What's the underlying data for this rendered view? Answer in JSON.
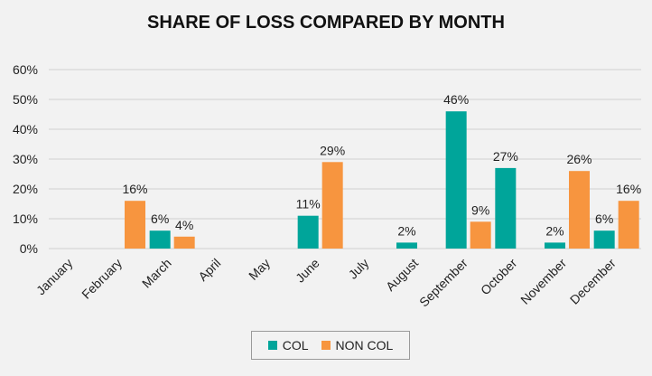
{
  "chart_data": {
    "type": "bar",
    "title": "SHARE OF LOSS COMPARED BY MONTH",
    "categories": [
      "January",
      "February",
      "March",
      "April",
      "May",
      "June",
      "July",
      "August",
      "September",
      "October",
      "November",
      "December"
    ],
    "series": [
      {
        "name": "COL",
        "color": "#00a59a",
        "values": [
          null,
          null,
          0.06,
          null,
          null,
          0.11,
          null,
          0.02,
          0.46,
          0.27,
          0.02,
          0.06
        ],
        "labels": [
          "",
          "",
          "6%",
          "",
          "",
          "11%",
          "",
          "2%",
          "46%",
          "27%",
          "2%",
          "6%"
        ]
      },
      {
        "name": "NON COL",
        "color": "#f7953f",
        "values": [
          null,
          0.16,
          0.04,
          null,
          null,
          0.29,
          null,
          null,
          0.09,
          null,
          0.26,
          0.16
        ],
        "labels": [
          "",
          "16%",
          "4%",
          "",
          "",
          "29%",
          "",
          "",
          "9%",
          "",
          "26%",
          "16%"
        ]
      }
    ],
    "ylim": [
      0,
      0.6
    ],
    "yticks": [
      0,
      0.1,
      0.2,
      0.3,
      0.4,
      0.5,
      0.6
    ],
    "ytick_labels": [
      "0%",
      "10%",
      "20%",
      "30%",
      "40%",
      "50%",
      "60%"
    ],
    "xlabel": "",
    "ylabel": "",
    "grid": true,
    "legend_position": "bottom"
  }
}
